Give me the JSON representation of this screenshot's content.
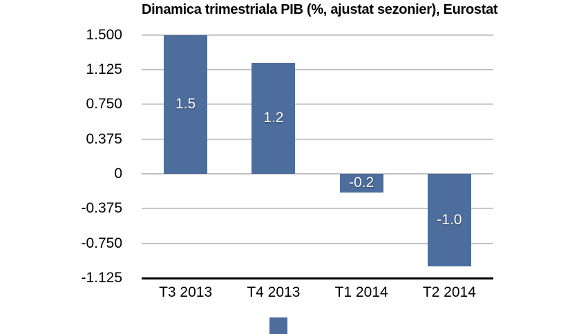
{
  "chart_data": {
    "type": "bar",
    "title": "Dinamica trimestriala PIB (%, ajustat sezonier), Eurostat",
    "categories": [
      "T3 2013",
      "T4 2013",
      "T1 2014",
      "T2 2014"
    ],
    "values": [
      1.5,
      1.2,
      -0.2,
      -1.0
    ],
    "bar_labels": [
      "1.5",
      "1.2",
      "-0.2",
      "-1.0"
    ],
    "y_ticks": [
      1.5,
      1.125,
      0.75,
      0.375,
      0,
      -0.375,
      -0.75,
      -1.125
    ],
    "y_tick_labels": [
      "1.500",
      "1.125",
      "0.750",
      "0.375",
      "0",
      "-0.375",
      "-0.750",
      "-1.125"
    ],
    "ylim": [
      -1.125,
      1.5
    ],
    "xlabel": "",
    "ylabel": "",
    "grid": true,
    "legend_position": "bottom",
    "colors": {
      "bar": "#4d6d9d",
      "gridline": "#c0c0c0",
      "axis": "#000000",
      "bar_label_text": "#ffffff",
      "title_text": "#000000",
      "tick_label_text": "#000000",
      "background": "#ffffff"
    }
  }
}
